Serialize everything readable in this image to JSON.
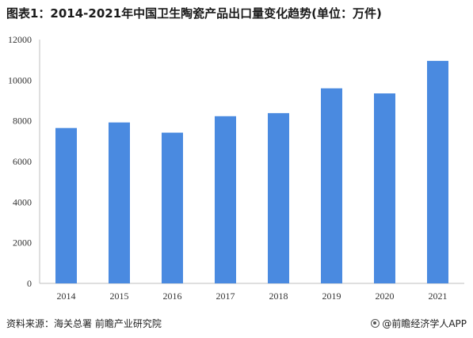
{
  "title": "图表1：2014-2021年中国卫生陶瓷产品出口量变化趋势(单位：万件)",
  "footer": {
    "source": "资料来源：海关总署 前瞻产业研究院",
    "brand": "@前瞻经济学人APP"
  },
  "colors": {
    "bar": "#4a8ae0",
    "axis": "#bfbfbf",
    "text": "#333333"
  },
  "chart_data": {
    "type": "bar",
    "title": "图表1：2014-2021年中国卫生陶瓷产品出口量变化趋势(单位：万件)",
    "xlabel": "",
    "ylabel": "",
    "categories": [
      "2014",
      "2015",
      "2016",
      "2017",
      "2018",
      "2019",
      "2020",
      "2021"
    ],
    "values": [
      7650,
      7920,
      7420,
      8230,
      8380,
      9600,
      9350,
      10950
    ],
    "ylim": [
      0,
      12000
    ],
    "yticks": [
      0,
      2000,
      4000,
      6000,
      8000,
      10000,
      12000
    ],
    "grid": false,
    "legend": "none"
  }
}
